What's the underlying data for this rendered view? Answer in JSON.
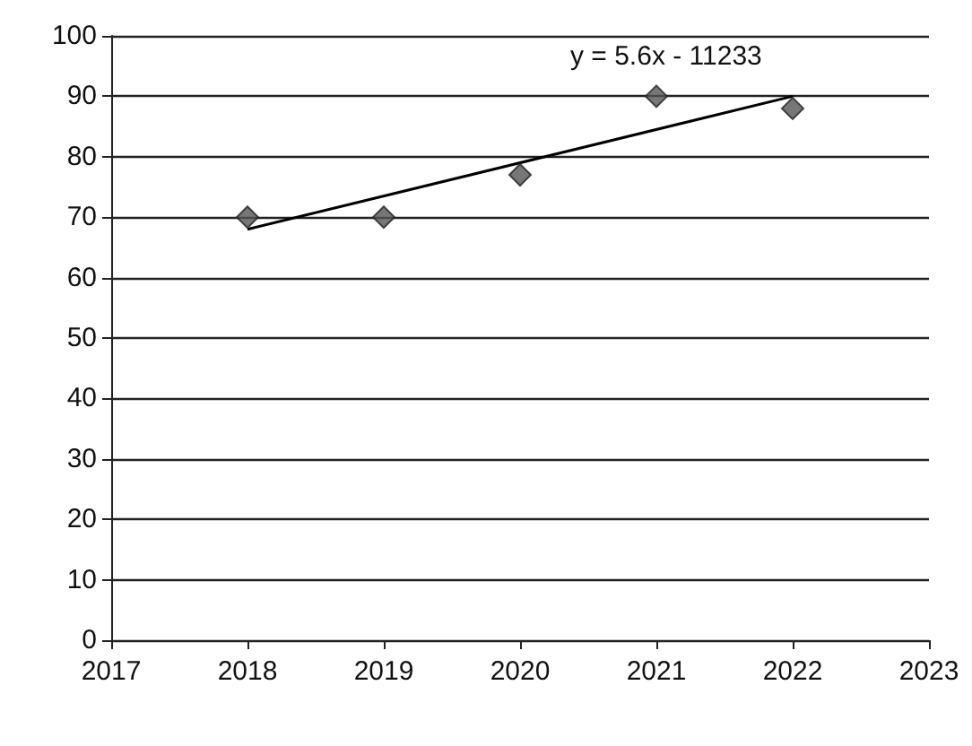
{
  "chart_data": {
    "type": "scatter",
    "x": [
      2018,
      2019,
      2020,
      2021,
      2022
    ],
    "series": [
      {
        "color": "#555555",
        "marker": "diamond",
        "values": [
          70,
          70,
          77,
          90,
          88
        ]
      },
      {
        "type": "line",
        "color": "#000000",
        "marker": "none",
        "x": [
          2018,
          2022
        ],
        "values": [
          68,
          90
        ]
      }
    ],
    "xlim": [
      2017,
      2023
    ],
    "xticks": [
      2017,
      2018,
      2019,
      2020,
      2021,
      2022,
      2023
    ],
    "ylim": [
      0,
      100
    ],
    "yticks": [
      0,
      10,
      20,
      30,
      40,
      50,
      60,
      70,
      80,
      90,
      100
    ],
    "grid": "y",
    "annotations": [
      "y = 5.6x - 11233"
    ]
  }
}
